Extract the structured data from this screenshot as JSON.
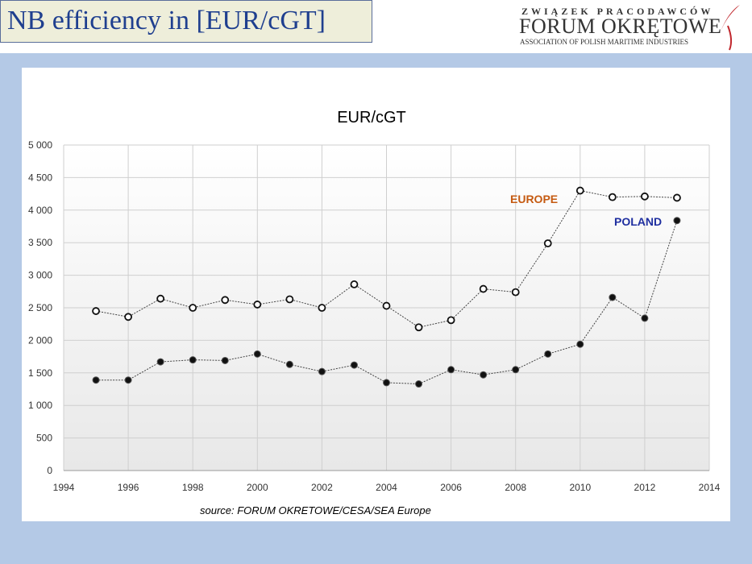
{
  "header": {
    "title": "NB efficiency in [EUR/cGT]"
  },
  "logo": {
    "line1": "ZWIĄZEK PRACODAWCÓW",
    "line2": "FORUM OKRĘTOWE",
    "line3": "ASSOCIATION OF POLISH MARITIME INDUSTRIES"
  },
  "source": "source: FORUM OKRETOWE/CESA/SEA Europe",
  "colors": {
    "background": "#b4c9e6",
    "title_text": "#1f3f8f",
    "europe_label": "#c55a11",
    "poland_label": "#1f2fa0"
  },
  "chart_data": {
    "type": "line",
    "title": "EUR/cGT",
    "xlabel": "",
    "ylabel": "",
    "xlim": [
      1994,
      2014
    ],
    "ylim": [
      0,
      5000
    ],
    "x_ticks": [
      "1994",
      "1996",
      "1998",
      "2000",
      "2002",
      "2004",
      "2006",
      "2008",
      "2010",
      "2012",
      "2014"
    ],
    "y_ticks": [
      "0",
      "500",
      "1 000",
      "1 500",
      "2 000",
      "2 500",
      "3 000",
      "3 500",
      "4 000",
      "4 500",
      "5 000"
    ],
    "grid": true,
    "x": [
      1995,
      1996,
      1997,
      1998,
      1999,
      2000,
      2001,
      2002,
      2003,
      2004,
      2005,
      2006,
      2007,
      2008,
      2009,
      2010,
      2011,
      2012,
      2013
    ],
    "series": [
      {
        "name": "EUROPE",
        "marker": "open-circle",
        "values": [
          2450,
          2360,
          2640,
          2500,
          2620,
          2550,
          2630,
          2500,
          2860,
          2530,
          2200,
          2310,
          2790,
          2740,
          3490,
          4300,
          4200,
          4210,
          4190
        ]
      },
      {
        "name": "POLAND",
        "marker": "filled-circle",
        "values": [
          1390,
          1390,
          1670,
          1700,
          1690,
          1790,
          1630,
          1520,
          1620,
          1350,
          1330,
          1550,
          1470,
          1550,
          1790,
          1940,
          2660,
          2340,
          3840
        ]
      }
    ]
  }
}
